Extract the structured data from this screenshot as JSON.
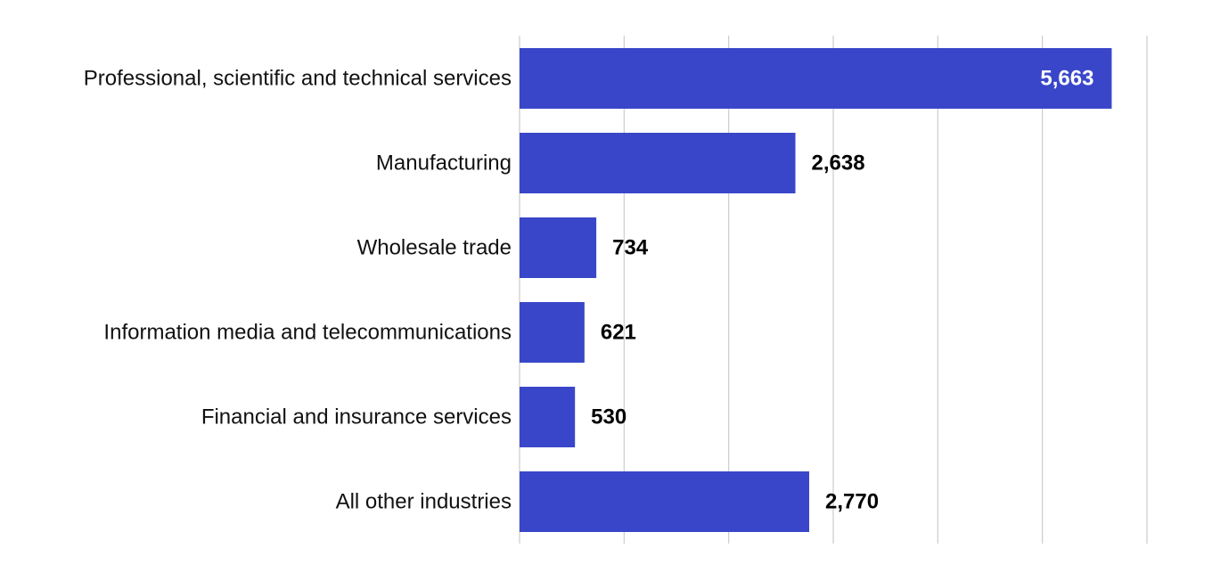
{
  "chart_data": {
    "type": "bar",
    "orientation": "horizontal",
    "title": "",
    "xlabel": "",
    "ylabel": "",
    "categories": [
      "Professional, scientific and technical services",
      "Manufacturing",
      "Wholesale trade",
      "Information media and telecommunications",
      "Financial and insurance services",
      "All other industries"
    ],
    "values": [
      5663,
      2638,
      734,
      621,
      530,
      2770
    ],
    "value_labels": [
      "5,663",
      "2,638",
      "734",
      "621",
      "530",
      "2,770"
    ],
    "xlim": [
      0,
      6000
    ],
    "x_grid_step": 1000,
    "x_tick_labels_shown": false,
    "grid": true,
    "legend": "none",
    "colors": {
      "bar": "#3a46c9",
      "label_inside": "#ffffff",
      "label_outside": "#000000",
      "grid": "#cccccc"
    }
  }
}
